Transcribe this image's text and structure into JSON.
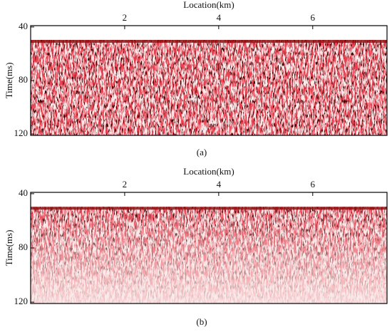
{
  "chart_data": [
    {
      "type": "image",
      "xlabel": "Location(km)",
      "ylabel": "Time(ms)",
      "caption": "(a)",
      "xlim": [
        0,
        7.58
      ],
      "xticks": [
        2,
        4,
        6
      ],
      "ylim": [
        39,
        121
      ],
      "yticks": [
        40,
        80,
        120
      ]
    },
    {
      "type": "image",
      "xlabel": "Location(km)",
      "ylabel": "Time(ms)",
      "caption": "(b)",
      "xlim": [
        0,
        7.58
      ],
      "xticks": [
        2,
        4,
        6
      ],
      "ylim": [
        39,
        121
      ],
      "yticks": [
        40,
        80,
        120
      ]
    }
  ]
}
